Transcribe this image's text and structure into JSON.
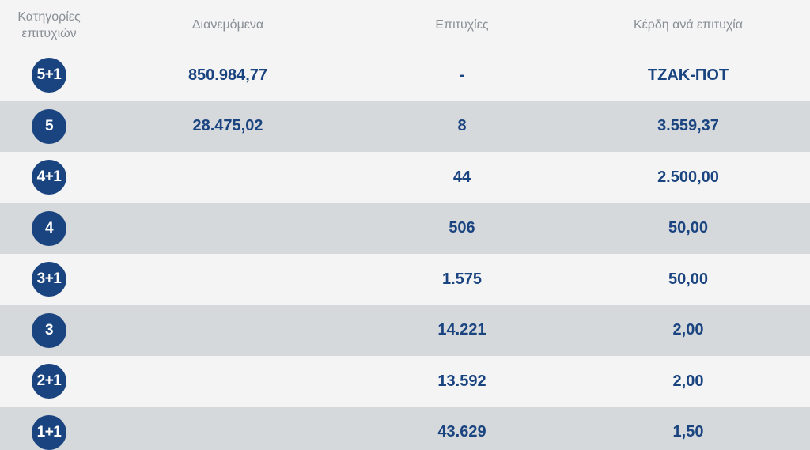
{
  "header": {
    "categories": "Κατηγορίες επιτυχιών",
    "distributed": "Διανεμόμενα",
    "winners": "Επιτυχίες",
    "prize_per_winner": "Κέρδη ανά επιτυχία"
  },
  "rows": [
    {
      "category": "5+1",
      "distributed": "850.984,77",
      "winners": "-",
      "prize": "ΤΖΑΚ-ΠΟΤ"
    },
    {
      "category": "5",
      "distributed": "28.475,02",
      "winners": "8",
      "prize": "3.559,37"
    },
    {
      "category": "4+1",
      "distributed": "",
      "winners": "44",
      "prize": "2.500,00"
    },
    {
      "category": "4",
      "distributed": "",
      "winners": "506",
      "prize": "50,00"
    },
    {
      "category": "3+1",
      "distributed": "",
      "winners": "1.575",
      "prize": "50,00"
    },
    {
      "category": "3",
      "distributed": "",
      "winners": "14.221",
      "prize": "2,00"
    },
    {
      "category": "2+1",
      "distributed": "",
      "winners": "13.592",
      "prize": "2,00"
    },
    {
      "category": "1+1",
      "distributed": "",
      "winners": "43.629",
      "prize": "1,50"
    }
  ],
  "colors": {
    "badge": "#1a4480",
    "text": "#1a4480",
    "row_light": "#f4f4f4",
    "row_dark": "#d6d9dc",
    "header_text": "#8a8f96"
  }
}
